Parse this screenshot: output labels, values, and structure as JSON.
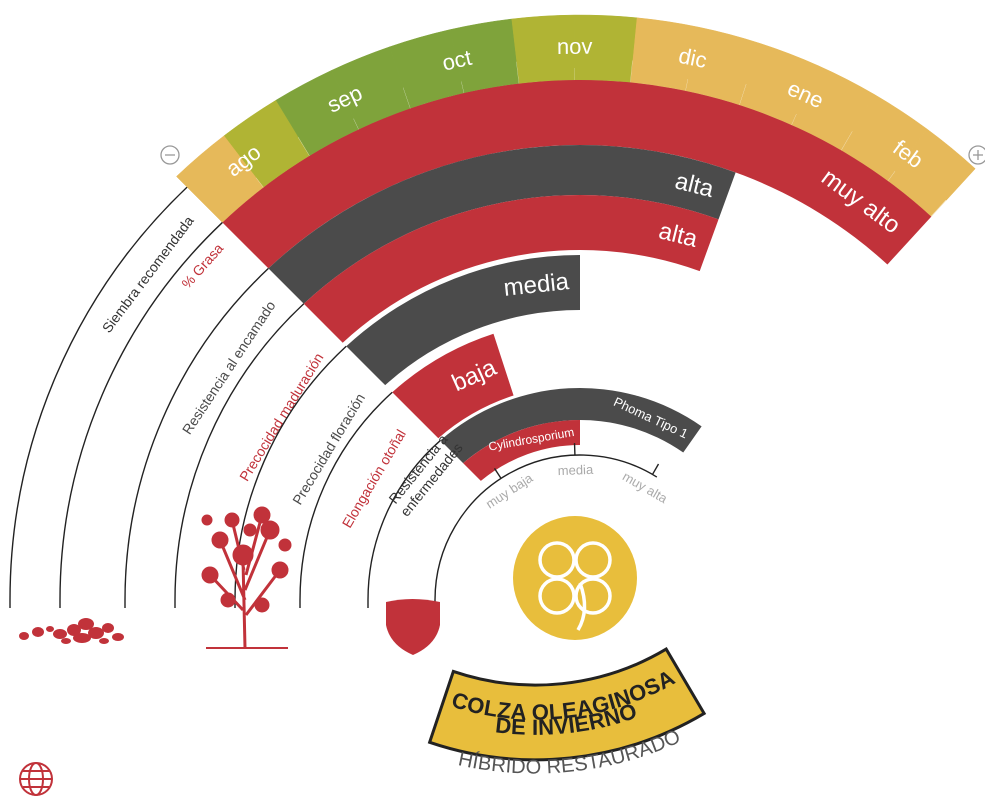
{
  "season": {
    "label": "Siembra recomendada",
    "months": [
      "ago",
      "sep",
      "oct",
      "nov",
      "dic",
      "ene",
      "feb"
    ],
    "segment_colors": [
      "#e6b95a",
      "#b0b434",
      "#7fa33b",
      "#7fa33b",
      "#7fa33b",
      "#7fa33b",
      "#b0b434",
      "#b0b434",
      "#e6b95a",
      "#e6b95a",
      "#e6b95a",
      "#e6b95a",
      "#e6b95a",
      "#e6b95a"
    ]
  },
  "traits": [
    {
      "label": "% Grasa",
      "rating": "muy alto",
      "color": "#c1323a"
    },
    {
      "label": "Resistencia al encamado",
      "rating": "alta",
      "color": "#4b4b4b"
    },
    {
      "label": "Precocidad maduración",
      "rating": "alta",
      "color": "#c1323a"
    },
    {
      "label": "Precocidad floración",
      "rating": "media",
      "color": "#4b4b4b"
    },
    {
      "label": "Elongación otoñal",
      "rating": "baja",
      "color": "#c1323a"
    }
  ],
  "diseases": {
    "label_lines": [
      "Resistencia a",
      "enfermedades"
    ],
    "items": [
      {
        "name": "Phoma Tipo 1",
        "color": "#4b4b4b"
      },
      {
        "name": "Cylindrosporium",
        "color": "#c1323a"
      }
    ],
    "scale": [
      "muy baja",
      "media",
      "muy alta"
    ]
  },
  "product": {
    "title_lines": [
      "COLZA OLEAGINOSA",
      "DE INVIERNO"
    ],
    "subtitle": "HÍBRIDO RESTAURADO"
  }
}
